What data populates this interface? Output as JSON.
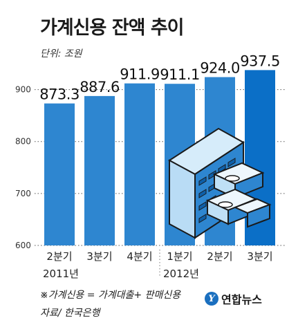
{
  "title": "가계신용 잔액 추이",
  "unit_label": "단위: 조원",
  "note": "※가계신용 = 가계대출+ 판매신용",
  "source": "자료/ 한국은행",
  "logo": {
    "mark": "Y",
    "text": "연합뉴스"
  },
  "colors": {
    "bar": "#2e86d0",
    "bar_highlight": "#0b6fc7",
    "grid": "#555555",
    "logo": "#1a6fbf"
  },
  "illustration": "building-and-money-stacks-icon",
  "chart_data": {
    "type": "bar",
    "title": "가계신용 잔액 추이",
    "ylabel": "단위: 조원",
    "xlabel": "",
    "categories": [
      "2분기",
      "3분기",
      "4분기",
      "1분기",
      "2분기",
      "3분기"
    ],
    "years": [
      {
        "label": "2011년",
        "start": 0,
        "end": 2
      },
      {
        "label": "2012년",
        "start": 3,
        "end": 5
      }
    ],
    "values": [
      873.3,
      887.6,
      911.9,
      911.1,
      924.0,
      937.5
    ],
    "value_labels": [
      "873.3",
      "887.6",
      "911.9",
      "911.1",
      "924.0",
      "937.5"
    ],
    "ylim": [
      600,
      950
    ],
    "yticks": [
      600,
      700,
      800,
      900
    ],
    "grid": true,
    "legend": "none"
  }
}
